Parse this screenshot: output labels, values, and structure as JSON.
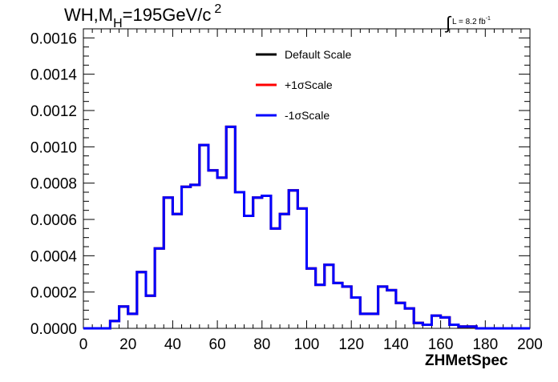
{
  "chart_data": {
    "type": "line",
    "title_main": "WH,M",
    "title_sub": "H",
    "title_rest": "=195GeV/c",
    "title_sup": "2",
    "lumi_text": "L = 8.2 fb",
    "lumi_sup": "-1",
    "xlabel": "ZHMetSpec",
    "ylabel": "",
    "xlim": [
      0,
      200
    ],
    "ylim": [
      0,
      0.00165
    ],
    "x_ticks": [
      "0",
      "20",
      "40",
      "60",
      "80",
      "100",
      "120",
      "140",
      "160",
      "180",
      "200"
    ],
    "y_ticks": [
      "0.0000",
      "0.0002",
      "0.0004",
      "0.0006",
      "0.0008",
      "0.0010",
      "0.0012",
      "0.0014",
      "0.0016"
    ],
    "bin_width": 4,
    "bin_edges_start": 0,
    "legend_position": "top-center",
    "series": [
      {
        "name": "Default Scale",
        "color": "#000000",
        "values": [
          0,
          0,
          0,
          4e-05,
          0.00012,
          8e-05,
          0.00031,
          0.00018,
          0.00044,
          0.00072,
          0.00063,
          0.00078,
          0.00079,
          0.00101,
          0.00087,
          0.00083,
          0.00111,
          0.00075,
          0.00062,
          0.00072,
          0.00073,
          0.00055,
          0.00063,
          0.00076,
          0.00066,
          0.00033,
          0.00024,
          0.00035,
          0.00025,
          0.00023,
          0.00017,
          8e-05,
          8e-05,
          0.00023,
          0.00021,
          0.00014,
          0.00011,
          3e-05,
          2e-05,
          7e-05,
          6e-05,
          2e-05,
          1e-05,
          1e-05,
          0,
          0,
          0,
          0,
          0,
          0
        ]
      },
      {
        "name": "+1σScale",
        "color": "#ff0000",
        "values": [
          0,
          0,
          0,
          4e-05,
          0.00012,
          8e-05,
          0.00031,
          0.00018,
          0.00044,
          0.00072,
          0.00063,
          0.00078,
          0.00079,
          0.00101,
          0.00087,
          0.00083,
          0.00111,
          0.00075,
          0.00062,
          0.00072,
          0.00073,
          0.00055,
          0.00063,
          0.00076,
          0.00066,
          0.00033,
          0.00024,
          0.00035,
          0.00025,
          0.00023,
          0.00017,
          8e-05,
          8e-05,
          0.00023,
          0.00021,
          0.00014,
          0.00011,
          3e-05,
          2e-05,
          7e-05,
          6e-05,
          2e-05,
          1e-05,
          1e-05,
          0,
          0,
          0,
          0,
          0,
          0
        ]
      },
      {
        "name": "-1σScale",
        "color": "#0000ff",
        "values": [
          0,
          0,
          0,
          4e-05,
          0.00012,
          8e-05,
          0.00031,
          0.00018,
          0.00044,
          0.00072,
          0.00063,
          0.00078,
          0.00079,
          0.00101,
          0.00087,
          0.00083,
          0.00111,
          0.00075,
          0.00062,
          0.00072,
          0.00073,
          0.00055,
          0.00063,
          0.00076,
          0.00066,
          0.00033,
          0.00024,
          0.00035,
          0.00025,
          0.00023,
          0.00017,
          8e-05,
          8e-05,
          0.00023,
          0.00021,
          0.00014,
          0.00011,
          3e-05,
          2e-05,
          7e-05,
          6e-05,
          2e-05,
          1e-05,
          1e-05,
          0,
          0,
          0,
          0,
          0,
          0
        ]
      }
    ]
  }
}
